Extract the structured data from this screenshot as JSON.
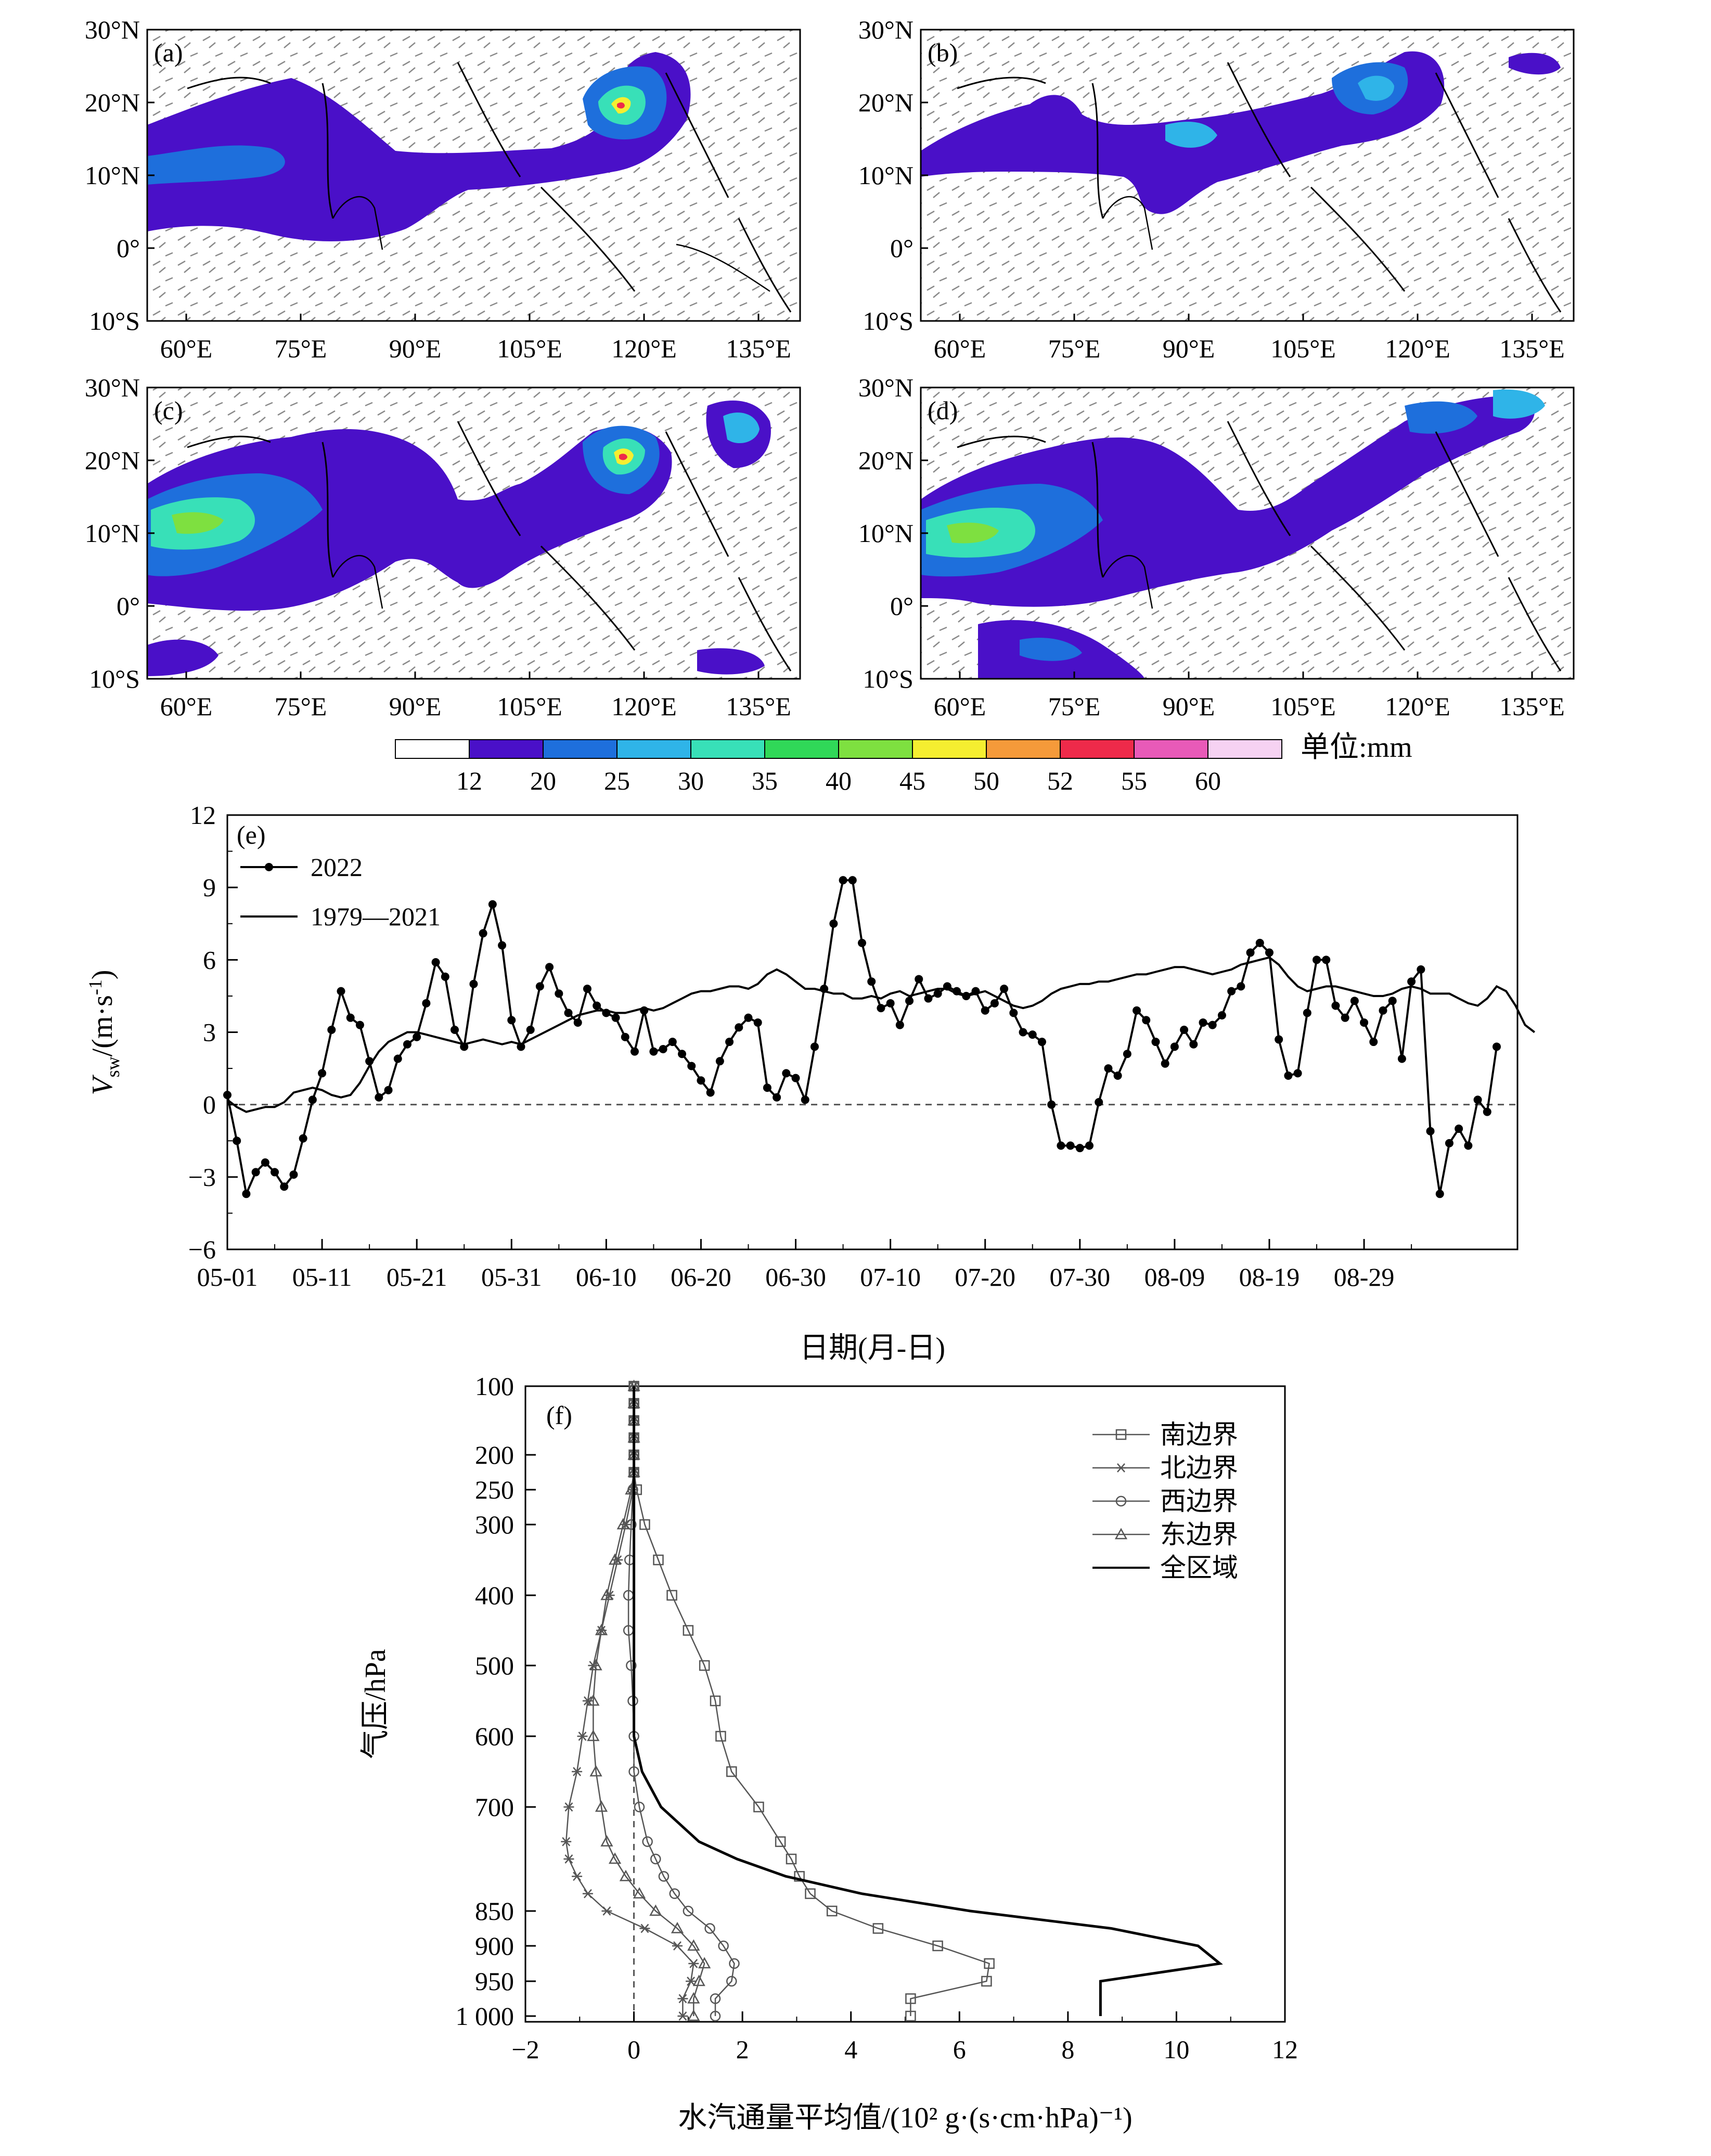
{
  "map_panels": {
    "lon_ticks": [
      "60°E",
      "75°E",
      "90°E",
      "105°E",
      "120°E",
      "135°E"
    ],
    "lat_ticks": [
      "30°N",
      "20°N",
      "10°N",
      "0°",
      "10°S"
    ],
    "panels": [
      {
        "tag": "(a)"
      },
      {
        "tag": "(b)"
      },
      {
        "tag": "(c)"
      },
      {
        "tag": "(d)"
      }
    ]
  },
  "colorbar": {
    "levels": [
      "12",
      "20",
      "25",
      "30",
      "35",
      "40",
      "45",
      "50",
      "52",
      "55",
      "60"
    ],
    "colors": [
      "#ffffff",
      "#4a10c8",
      "#1e6fdc",
      "#2fb4e8",
      "#38e0b8",
      "#30d858",
      "#7ee040",
      "#f5ee30",
      "#f59a3a",
      "#ee2a4a",
      "#e85ab8",
      "#f6d2f2"
    ],
    "unit_label": "单位:mm"
  },
  "chart_data": [
    {
      "panel": "(e)",
      "type": "line",
      "xlabel": "日期(月-日)",
      "ylabel": "Vsw/(m·s-1)",
      "x_tick_labels": [
        "05-01",
        "05-11",
        "05-21",
        "05-31",
        "06-10",
        "06-20",
        "06-30",
        "07-10",
        "07-20",
        "07-30",
        "08-09",
        "08-19",
        "08-29"
      ],
      "ylim": [
        -6,
        12
      ],
      "y_ticks": [
        12,
        9,
        6,
        3,
        0,
        -3,
        -6
      ],
      "reference_line": 0,
      "series": [
        {
          "name": "2022",
          "marker": "filled-circle",
          "values": [
            0.4,
            -1.5,
            -3.7,
            -2.8,
            -2.4,
            -2.8,
            -3.4,
            -2.9,
            -1.4,
            0.2,
            1.3,
            3.1,
            4.7,
            3.6,
            3.3,
            1.8,
            0.3,
            0.6,
            1.9,
            2.5,
            2.8,
            4.2,
            5.9,
            5.3,
            3.1,
            2.4,
            5.0,
            7.1,
            8.3,
            6.6,
            3.5,
            2.4,
            3.1,
            4.9,
            5.7,
            4.6,
            3.8,
            3.4,
            4.8,
            4.1,
            3.8,
            3.6,
            2.8,
            2.2,
            3.9,
            2.2,
            2.3,
            2.6,
            2.1,
            1.6,
            1.0,
            0.5,
            1.8,
            2.6,
            3.2,
            3.6,
            3.4,
            0.7,
            0.3,
            1.3,
            1.1,
            0.2,
            2.4,
            4.8,
            7.5,
            9.3,
            9.3,
            6.7,
            5.1,
            4.0,
            4.2,
            3.3,
            4.3,
            5.2,
            4.4,
            4.6,
            4.9,
            4.7,
            4.5,
            4.7,
            3.9,
            4.2,
            4.8,
            3.8,
            3.0,
            2.9,
            2.6,
            0.0,
            -1.7,
            -1.7,
            -1.8,
            -1.7,
            0.1,
            1.5,
            1.2,
            2.1,
            3.9,
            3.5,
            2.6,
            1.7,
            2.4,
            3.1,
            2.5,
            3.4,
            3.3,
            3.7,
            4.7,
            4.9,
            6.3,
            6.7,
            6.3,
            2.7,
            1.2,
            1.3,
            3.8,
            6.0,
            6.0,
            4.1,
            3.6,
            4.3,
            3.4,
            2.6,
            3.9,
            4.3,
            1.9,
            5.1,
            5.6,
            -1.1,
            -3.7,
            -1.6,
            -1.0,
            -1.7,
            0.2,
            -0.3,
            2.4
          ]
        },
        {
          "name": "1979—2021",
          "marker": "none",
          "values": [
            0.2,
            -0.1,
            -0.3,
            -0.2,
            -0.1,
            -0.1,
            0.1,
            0.5,
            0.6,
            0.7,
            0.6,
            0.4,
            0.3,
            0.4,
            0.9,
            1.6,
            2.2,
            2.6,
            2.8,
            3.0,
            3.0,
            2.9,
            2.8,
            2.7,
            2.6,
            2.5,
            2.6,
            2.7,
            2.6,
            2.5,
            2.6,
            2.5,
            2.7,
            2.9,
            3.1,
            3.3,
            3.5,
            3.7,
            3.8,
            3.9,
            3.9,
            3.8,
            3.8,
            3.9,
            4.0,
            3.9,
            4.0,
            4.2,
            4.4,
            4.6,
            4.7,
            4.7,
            4.8,
            4.9,
            4.9,
            4.8,
            5.0,
            5.4,
            5.6,
            5.4,
            5.1,
            4.8,
            4.8,
            4.7,
            4.6,
            4.6,
            4.4,
            4.4,
            4.5,
            4.4,
            4.6,
            4.7,
            4.5,
            4.6,
            4.7,
            4.8,
            4.8,
            4.6,
            4.5,
            4.6,
            4.7,
            4.5,
            4.3,
            4.1,
            4.0,
            4.1,
            4.3,
            4.6,
            4.8,
            4.9,
            5.0,
            5.0,
            5.1,
            5.1,
            5.2,
            5.3,
            5.4,
            5.4,
            5.5,
            5.6,
            5.7,
            5.7,
            5.6,
            5.5,
            5.4,
            5.5,
            5.6,
            5.8,
            5.9,
            6.0,
            6.1,
            5.8,
            5.3,
            4.9,
            4.7,
            4.8,
            4.9,
            4.9,
            4.8,
            4.7,
            4.6,
            4.5,
            4.5,
            4.6,
            4.8,
            4.9,
            4.8,
            4.6,
            4.6,
            4.6,
            4.4,
            4.2,
            4.1,
            4.4,
            4.9,
            4.7,
            4.1,
            3.3,
            3.0
          ]
        }
      ]
    },
    {
      "panel": "(f)",
      "type": "line",
      "xlabel": "水汽通量平均值/(10² g·(s·cm·hPa)⁻¹)",
      "ylabel": "气压/hPa",
      "xlim": [
        -2,
        12
      ],
      "x_ticks": [
        -2,
        0,
        2,
        4,
        6,
        8,
        10,
        12
      ],
      "y_tick_labels": [
        "100",
        "200",
        "250",
        "300",
        "400",
        "500",
        "600",
        "700",
        "850",
        "900",
        "950",
        "1 000"
      ],
      "pressure_levels": [
        100,
        125,
        150,
        175,
        200,
        225,
        250,
        300,
        350,
        400,
        450,
        500,
        550,
        600,
        650,
        700,
        750,
        775,
        800,
        825,
        850,
        875,
        900,
        925,
        950,
        975,
        1000
      ],
      "reference_line": 0,
      "series": [
        {
          "name": "南边界",
          "marker": "square",
          "values": [
            0,
            0,
            0,
            0,
            0,
            0,
            0.05,
            0.2,
            0.45,
            0.7,
            1.0,
            1.3,
            1.5,
            1.6,
            1.8,
            2.3,
            2.7,
            2.9,
            3.05,
            3.25,
            3.65,
            4.5,
            5.6,
            6.55,
            6.5,
            5.1,
            5.1
          ]
        },
        {
          "name": "北边界",
          "marker": "star",
          "values": [
            0,
            0,
            0,
            0,
            0,
            0,
            -0.02,
            -0.15,
            -0.3,
            -0.45,
            -0.6,
            -0.75,
            -0.85,
            -0.95,
            -1.05,
            -1.2,
            -1.25,
            -1.2,
            -1.05,
            -0.85,
            -0.5,
            0.2,
            0.8,
            1.1,
            1.05,
            0.9,
            0.9
          ]
        },
        {
          "name": "西边界",
          "marker": "circle",
          "values": [
            0,
            0,
            0,
            0,
            0,
            0,
            -0.02,
            -0.05,
            -0.08,
            -0.1,
            -0.1,
            -0.05,
            -0.02,
            0.0,
            0.0,
            0.1,
            0.25,
            0.4,
            0.55,
            0.75,
            1.0,
            1.4,
            1.65,
            1.85,
            1.8,
            1.5,
            1.5
          ]
        },
        {
          "name": "东边界",
          "marker": "triangle",
          "values": [
            0,
            0,
            0,
            0,
            0,
            0,
            -0.05,
            -0.2,
            -0.35,
            -0.5,
            -0.6,
            -0.7,
            -0.75,
            -0.75,
            -0.7,
            -0.6,
            -0.5,
            -0.35,
            -0.15,
            0.1,
            0.4,
            0.8,
            1.1,
            1.3,
            1.2,
            1.1,
            1.1
          ]
        },
        {
          "name": "全区域",
          "marker": "none",
          "values": [
            0,
            0,
            0,
            0,
            0,
            0,
            0,
            0,
            0,
            0,
            0,
            0,
            0,
            0,
            0.15,
            0.5,
            1.2,
            1.9,
            2.8,
            4.2,
            6.2,
            8.8,
            10.4,
            10.8,
            8.6,
            8.6,
            8.6
          ]
        }
      ]
    }
  ]
}
